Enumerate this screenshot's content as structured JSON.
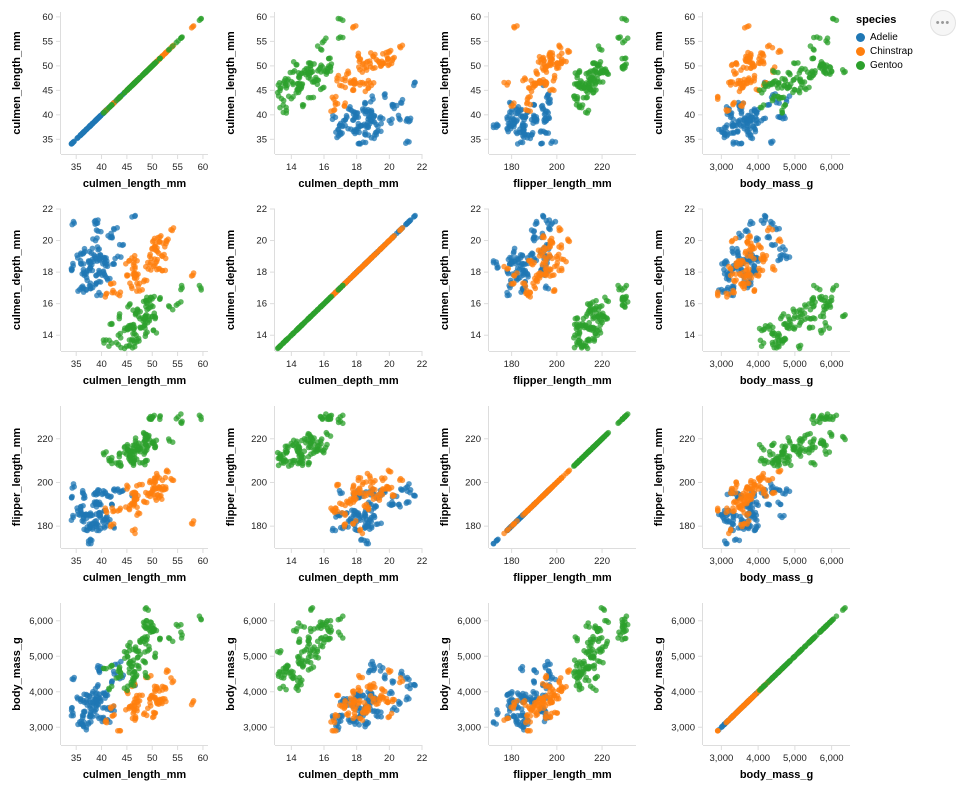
{
  "options_button_label": "•••",
  "chart_data": {
    "type": "scatter",
    "subtype": "scatter_matrix",
    "title": "",
    "grid": false,
    "legend_position": "top-right",
    "variables": [
      "culmen_length_mm",
      "culmen_depth_mm",
      "flipper_length_mm",
      "body_mass_g"
    ],
    "domains": {
      "culmen_length_mm": [
        32,
        61
      ],
      "culmen_depth_mm": [
        13,
        22
      ],
      "flipper_length_mm": [
        170,
        235
      ],
      "body_mass_g": [
        2500,
        6500
      ]
    },
    "ticks": {
      "culmen_length_mm": [
        35,
        40,
        45,
        50,
        55,
        60
      ],
      "culmen_depth_mm": [
        14,
        16,
        18,
        20,
        22
      ],
      "flipper_length_mm": [
        180,
        200,
        220
      ],
      "body_mass_g": [
        3000,
        4000,
        5000,
        6000
      ]
    },
    "legend": {
      "title": "species",
      "entries": [
        {
          "label": "Adelie",
          "color": "#1f77b4"
        },
        {
          "label": "Chinstrap",
          "color": "#ff7f0e"
        },
        {
          "label": "Gentoo",
          "color": "#2ca02c"
        }
      ]
    },
    "series": [
      {
        "name": "Adelie",
        "color": "#1f77b4",
        "points": [
          [
            39.1,
            18.7,
            181,
            3750
          ],
          [
            39.5,
            17.4,
            186,
            3800
          ],
          [
            40.3,
            18.0,
            195,
            3250
          ],
          [
            36.7,
            19.3,
            193,
            3450
          ],
          [
            39.3,
            20.6,
            190,
            3650
          ],
          [
            38.9,
            17.8,
            181,
            3625
          ],
          [
            39.2,
            19.6,
            195,
            4675
          ],
          [
            34.1,
            18.1,
            193,
            3475
          ],
          [
            42.0,
            20.2,
            190,
            4250
          ],
          [
            37.8,
            17.1,
            186,
            3300
          ],
          [
            37.8,
            17.3,
            180,
            3700
          ],
          [
            41.1,
            17.6,
            182,
            3200
          ],
          [
            38.6,
            21.2,
            191,
            3800
          ],
          [
            34.6,
            21.1,
            198,
            4400
          ],
          [
            36.6,
            17.8,
            185,
            3700
          ],
          [
            38.7,
            19.0,
            195,
            3450
          ],
          [
            42.5,
            20.7,
            197,
            4500
          ],
          [
            34.4,
            18.4,
            184,
            3325
          ],
          [
            46.0,
            21.5,
            194,
            4200
          ],
          [
            37.8,
            18.3,
            174,
            3400
          ],
          [
            37.7,
            18.7,
            180,
            3600
          ],
          [
            35.9,
            19.2,
            189,
            3800
          ],
          [
            38.2,
            18.1,
            185,
            3950
          ],
          [
            38.8,
            17.2,
            180,
            3800
          ],
          [
            35.3,
            18.9,
            187,
            3800
          ],
          [
            40.6,
            18.6,
            183,
            3550
          ],
          [
            40.5,
            17.9,
            187,
            3200
          ],
          [
            37.9,
            18.6,
            172,
            3150
          ],
          [
            40.5,
            18.9,
            180,
            3950
          ],
          [
            39.5,
            16.7,
            178,
            3250
          ],
          [
            37.2,
            18.1,
            178,
            3900
          ],
          [
            39.5,
            18.1,
            186,
            3850
          ],
          [
            40.9,
            18.9,
            184,
            3900
          ],
          [
            36.4,
            17.0,
            195,
            3325
          ],
          [
            39.2,
            21.1,
            196,
            4150
          ],
          [
            38.8,
            20.0,
            190,
            3950
          ],
          [
            42.2,
            18.5,
            180,
            3550
          ],
          [
            37.6,
            19.3,
            181,
            3300
          ],
          [
            39.8,
            19.1,
            184,
            4650
          ],
          [
            36.5,
            18.0,
            182,
            3150
          ],
          [
            40.8,
            18.4,
            195,
            3900
          ],
          [
            36.0,
            18.5,
            186,
            3100
          ],
          [
            44.1,
            19.7,
            196,
            4400
          ],
          [
            37.0,
            16.9,
            185,
            3000
          ],
          [
            39.6,
            18.8,
            190,
            4600
          ],
          [
            41.3,
            20.3,
            194,
            3550
          ],
          [
            35.7,
            16.9,
            185,
            3150
          ],
          [
            43.2,
            19.0,
            197,
            4775
          ]
        ]
      },
      {
        "name": "Chinstrap",
        "color": "#ff7f0e",
        "points": [
          [
            46.5,
            17.9,
            192,
            3500
          ],
          [
            50.0,
            19.5,
            196,
            3900
          ],
          [
            51.3,
            19.2,
            193,
            3650
          ],
          [
            45.4,
            18.7,
            188,
            3525
          ],
          [
            52.7,
            19.8,
            197,
            3725
          ],
          [
            45.2,
            17.8,
            198,
            3950
          ],
          [
            46.1,
            18.2,
            178,
            3250
          ],
          [
            51.3,
            18.2,
            197,
            3750
          ],
          [
            46.0,
            18.9,
            195,
            4150
          ],
          [
            51.3,
            19.9,
            198,
            3700
          ],
          [
            46.6,
            17.8,
            193,
            3800
          ],
          [
            51.7,
            20.3,
            194,
            3775
          ],
          [
            47.0,
            17.3,
            185,
            3700
          ],
          [
            52.0,
            18.1,
            201,
            4050
          ],
          [
            45.9,
            17.1,
            190,
            3575
          ],
          [
            50.5,
            19.6,
            201,
            4050
          ],
          [
            50.3,
            20.0,
            197,
            3300
          ],
          [
            58.0,
            17.8,
            181,
            3700
          ],
          [
            46.4,
            18.6,
            190,
            3450
          ],
          [
            49.2,
            18.2,
            195,
            4400
          ],
          [
            42.4,
            17.3,
            181,
            3600
          ],
          [
            48.5,
            17.5,
            191,
            3400
          ],
          [
            43.2,
            16.6,
            187,
            2900
          ],
          [
            50.6,
            19.4,
            193,
            3800
          ],
          [
            46.7,
            17.9,
            195,
            3300
          ],
          [
            52.0,
            19.0,
            197,
            4150
          ],
          [
            50.5,
            18.4,
            200,
            3400
          ],
          [
            49.5,
            19.0,
            200,
            3800
          ],
          [
            46.4,
            17.8,
            191,
            3700
          ],
          [
            52.8,
            20.0,
            205,
            4550
          ],
          [
            40.9,
            16.6,
            187,
            3200
          ],
          [
            54.2,
            20.8,
            201,
            4300
          ],
          [
            42.5,
            16.7,
            187,
            3350
          ],
          [
            51.0,
            18.8,
            203,
            4100
          ],
          [
            49.7,
            18.6,
            195,
            3600
          ],
          [
            47.5,
            16.8,
            199,
            3900
          ]
        ]
      },
      {
        "name": "Gentoo",
        "color": "#2ca02c",
        "points": [
          [
            46.1,
            13.2,
            211,
            4500
          ],
          [
            50.0,
            16.3,
            230,
            5700
          ],
          [
            48.7,
            14.1,
            210,
            4450
          ],
          [
            50.0,
            15.2,
            218,
            5700
          ],
          [
            47.6,
            14.5,
            215,
            5400
          ],
          [
            46.5,
            13.5,
            210,
            4550
          ],
          [
            45.4,
            14.6,
            211,
            4800
          ],
          [
            46.7,
            15.3,
            219,
            5200
          ],
          [
            43.3,
            13.4,
            209,
            4400
          ],
          [
            46.8,
            15.4,
            215,
            5150
          ],
          [
            40.9,
            13.7,
            214,
            4650
          ],
          [
            49.0,
            16.1,
            216,
            5550
          ],
          [
            45.5,
            13.7,
            214,
            4650
          ],
          [
            48.4,
            14.6,
            213,
            5850
          ],
          [
            45.8,
            14.6,
            210,
            4200
          ],
          [
            49.3,
            15.7,
            217,
            5850
          ],
          [
            42.0,
            13.5,
            210,
            4150
          ],
          [
            49.2,
            15.2,
            221,
            6300
          ],
          [
            46.2,
            14.5,
            209,
            4800
          ],
          [
            48.7,
            15.1,
            222,
            5350
          ],
          [
            50.2,
            14.3,
            218,
            5700
          ],
          [
            45.1,
            14.5,
            215,
            5000
          ],
          [
            46.5,
            14.5,
            213,
            4400
          ],
          [
            55.9,
            17.0,
            228,
            5600
          ],
          [
            44.5,
            14.3,
            216,
            4100
          ],
          [
            48.8,
            16.2,
            222,
            6000
          ],
          [
            47.2,
            15.5,
            215,
            4975
          ],
          [
            41.7,
            14.7,
            210,
            4700
          ],
          [
            53.4,
            15.8,
            219,
            5500
          ],
          [
            43.3,
            14.0,
            208,
            4575
          ],
          [
            48.1,
            15.1,
            209,
            5500
          ],
          [
            50.5,
            15.2,
            216,
            5000
          ],
          [
            49.8,
            15.9,
            229,
            5950
          ],
          [
            43.5,
            15.2,
            213,
            4650
          ],
          [
            51.5,
            16.3,
            230,
            5500
          ],
          [
            46.2,
            14.1,
            217,
            4375
          ],
          [
            55.1,
            16.0,
            230,
            5850
          ],
          [
            48.5,
            15.0,
            219,
            4850
          ],
          [
            49.5,
            16.2,
            229,
            5800
          ],
          [
            44.9,
            13.3,
            213,
            5100
          ],
          [
            45.2,
            15.8,
            215,
            5300
          ],
          [
            59.6,
            17.0,
            230,
            6050
          ],
          [
            49.1,
            14.8,
            220,
            5150
          ],
          [
            47.3,
            13.8,
            216,
            4725
          ]
        ]
      }
    ]
  }
}
